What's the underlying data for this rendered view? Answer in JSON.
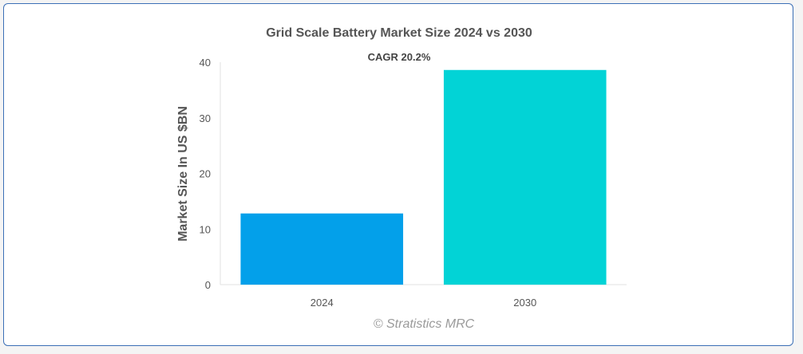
{
  "chart_data": {
    "type": "bar",
    "title": "Grid Scale Battery Market Size 2024 vs 2030",
    "subtitle": "CAGR 20.2%",
    "xlabel": "",
    "ylabel": "Market Size In US $BN",
    "categories": [
      "2024",
      "2030"
    ],
    "values": [
      12.8,
      38.6
    ],
    "colors": [
      "#03a0ea",
      "#02d3d6"
    ],
    "ylim": [
      0,
      40
    ],
    "yticks": [
      0,
      10,
      20,
      30,
      40
    ],
    "grid": false,
    "legend": "none"
  },
  "watermark": "© Stratistics MRC"
}
